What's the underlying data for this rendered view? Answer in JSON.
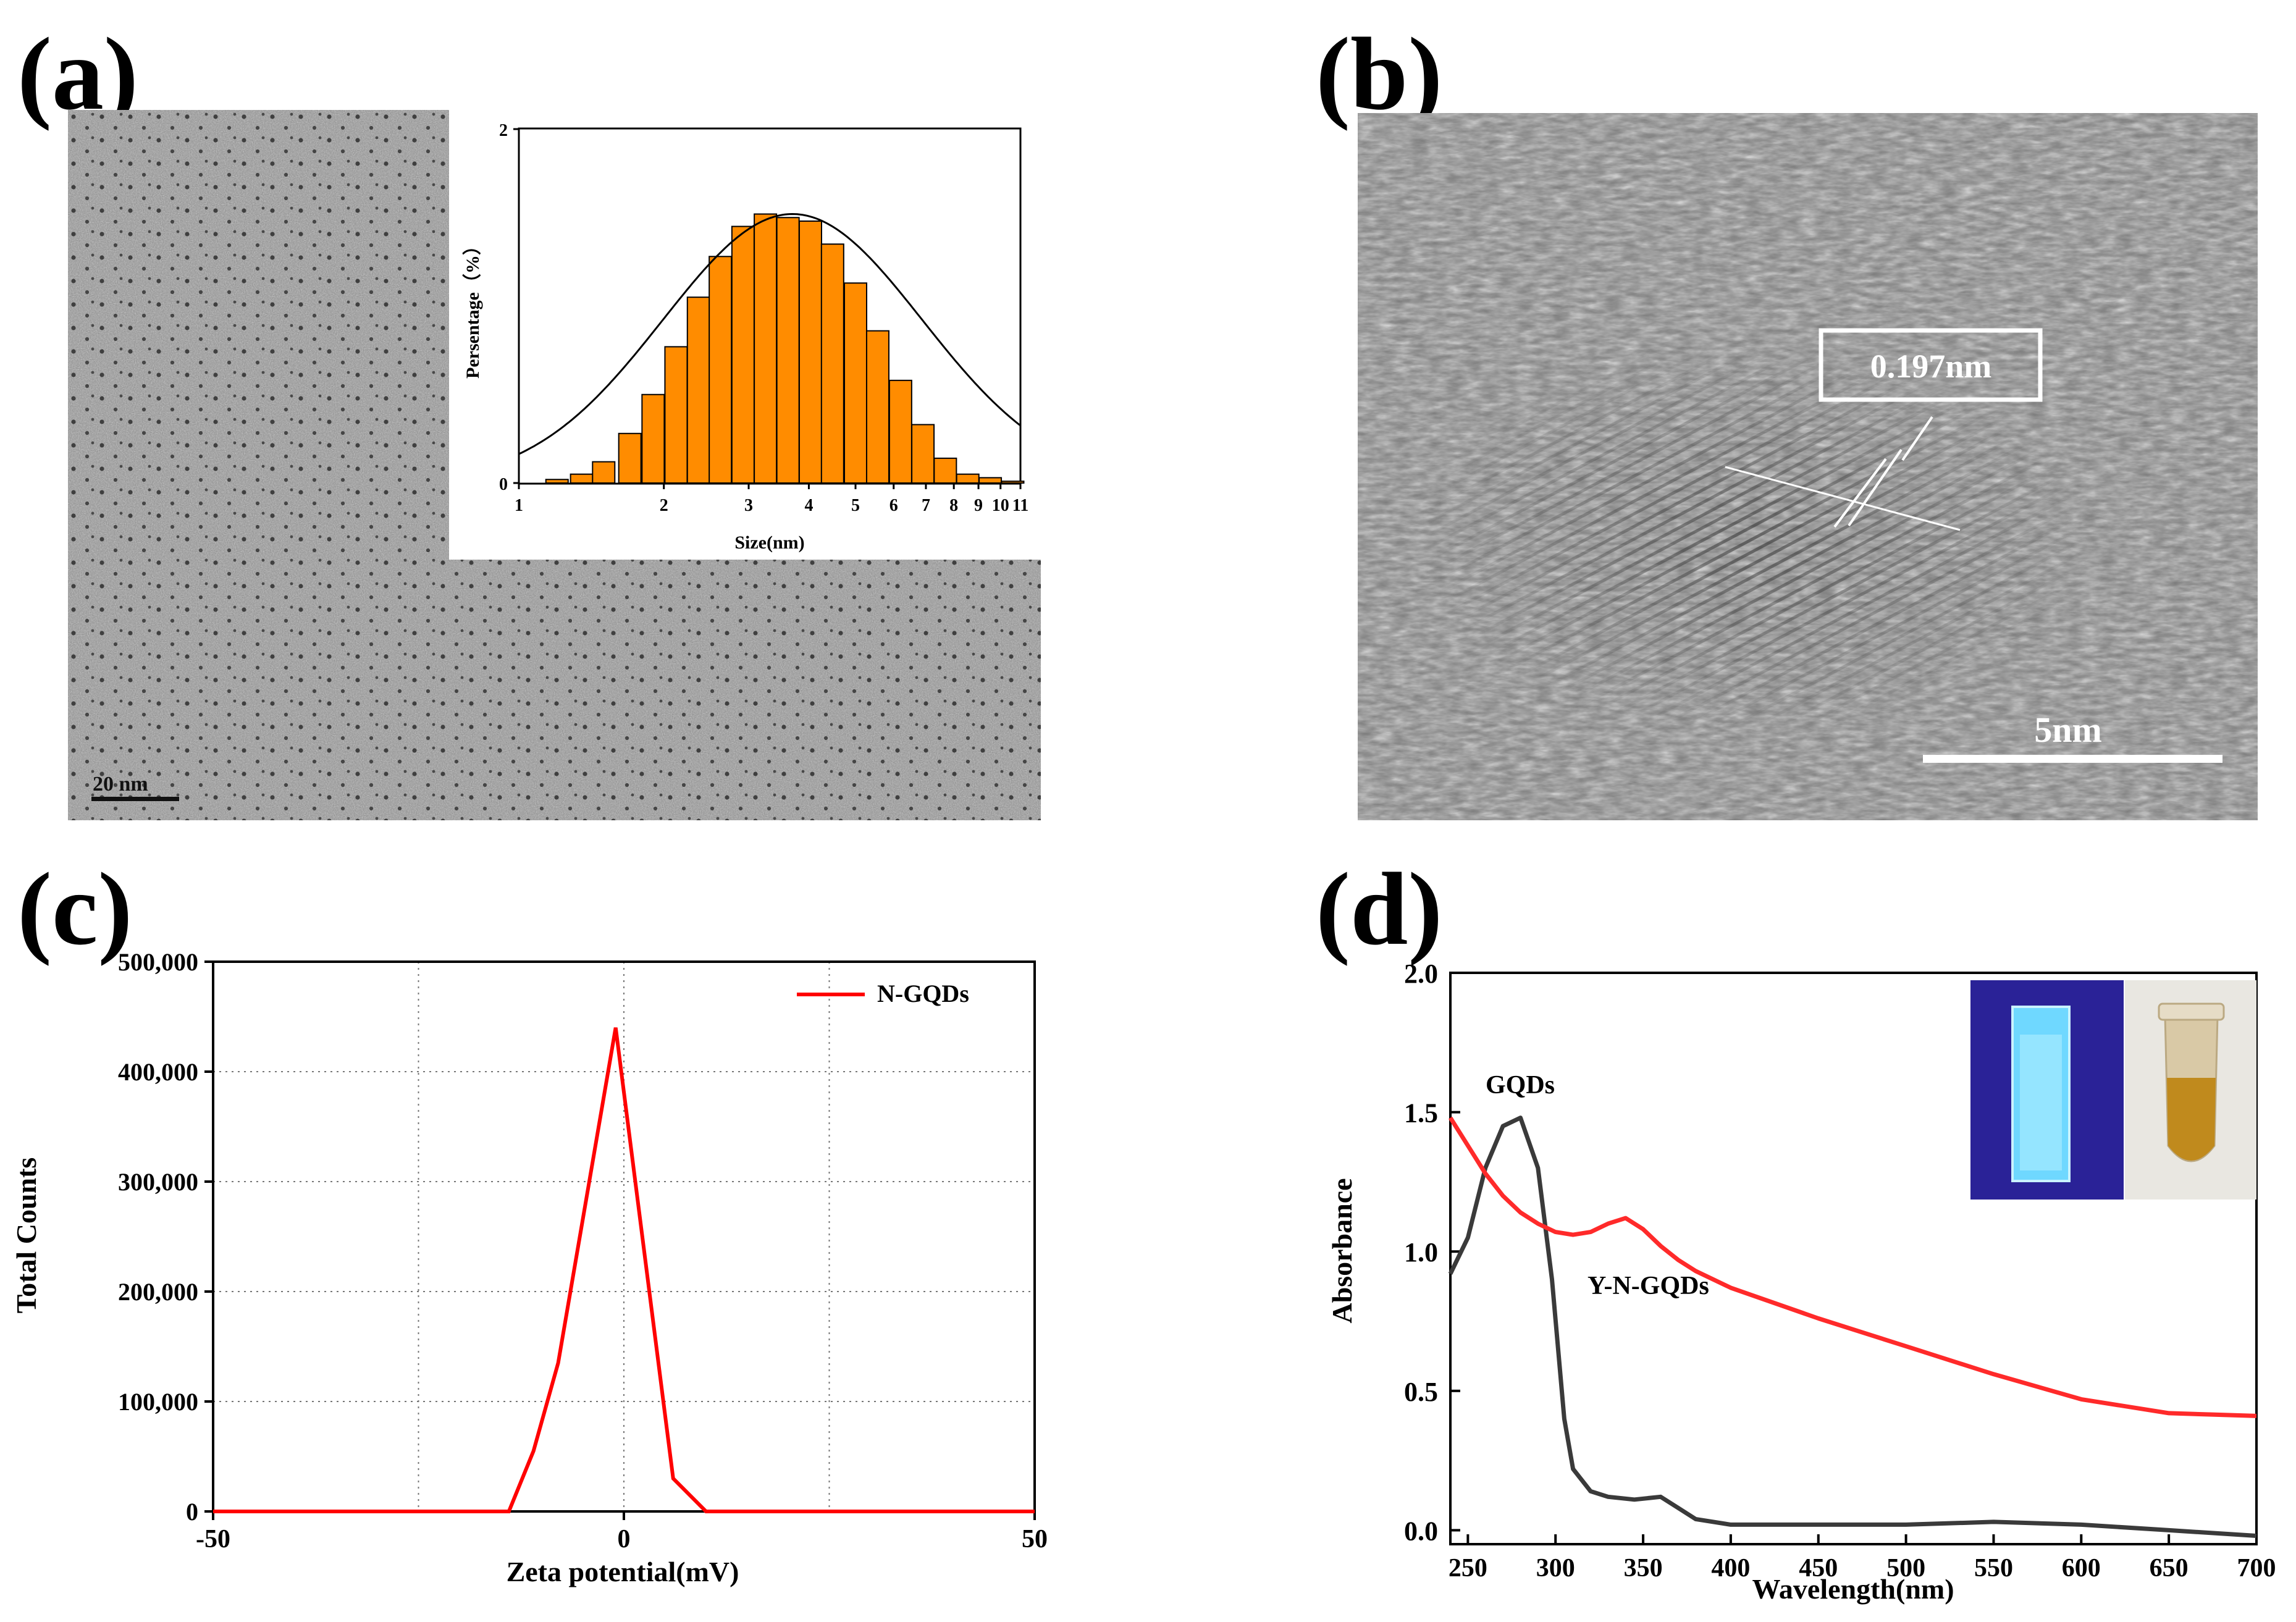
{
  "panel_labels": {
    "a": "(a)",
    "b": "(b)",
    "c": "(c)",
    "d": "(d)"
  },
  "panel_a": {
    "scale_bar_label": "20 nm",
    "inset_colors": {
      "bar": "#FF8C00",
      "fit": "#000000"
    }
  },
  "panel_b": {
    "lattice_label": "0.197nm",
    "scale_bar_label": "5nm"
  },
  "chart_data": [
    {
      "id": "size-distribution",
      "type": "bar",
      "xlabel": "Size(nm)",
      "ylabel": "Persentage（%）",
      "ylim": [
        0,
        2
      ],
      "yticks": [
        "0",
        "2"
      ],
      "xticks": [
        "1",
        "2",
        "3",
        "4",
        "5",
        "6",
        "7",
        "8",
        "9",
        "10",
        "11"
      ],
      "bar_centers_log": [
        1.2,
        1.35,
        1.5,
        1.7,
        1.9,
        2.12,
        2.36,
        2.62,
        2.92,
        3.25,
        3.62,
        4.03,
        4.48,
        5.0,
        5.56,
        6.2,
        6.9,
        7.68,
        8.55,
        9.52,
        10.6
      ],
      "values": [
        0.02,
        0.05,
        0.12,
        0.28,
        0.5,
        0.77,
        1.05,
        1.28,
        1.45,
        1.52,
        1.5,
        1.48,
        1.35,
        1.13,
        0.86,
        0.58,
        0.33,
        0.14,
        0.05,
        0.03,
        0.01
      ],
      "fit_curve": "gaussian",
      "bar_color": "#FF8C00"
    },
    {
      "id": "zeta-potential",
      "type": "line",
      "xlabel": "Zeta potential(mV)",
      "ylabel": "Total Counts",
      "xlim": [
        -50,
        50
      ],
      "ylim": [
        0,
        500000
      ],
      "xticks": [
        "-50",
        "0",
        "50"
      ],
      "yticks": [
        "0",
        "100,000",
        "200,000",
        "300,000",
        "400,000",
        "500,000"
      ],
      "grid": true,
      "legend_position": "top-right",
      "series": [
        {
          "name": "N-GQDs",
          "color": "#FF0000",
          "x": [
            -50,
            -14,
            -11,
            -8,
            -1,
            6,
            10,
            50
          ],
          "y": [
            0,
            0,
            55000,
            135000,
            440000,
            30000,
            0,
            0
          ]
        }
      ]
    },
    {
      "id": "absorbance",
      "type": "line",
      "xlabel": "Wavelength(nm)",
      "ylabel": "Absorbance",
      "xlim": [
        240,
        700
      ],
      "ylim": [
        -0.05,
        2.0
      ],
      "xticks": [
        "250",
        "300",
        "350",
        "400",
        "450",
        "500",
        "550",
        "600",
        "650",
        "700"
      ],
      "yticks": [
        "0.0",
        "0.5",
        "1.0",
        "1.5",
        "2.0"
      ],
      "annotations": [
        "GQDs",
        "Y-N-GQDs"
      ],
      "series": [
        {
          "name": "GQDs",
          "color": "#3a3a3a",
          "x": [
            240,
            250,
            260,
            270,
            280,
            290,
            298,
            305,
            310,
            320,
            330,
            345,
            360,
            370,
            380,
            400,
            450,
            500,
            550,
            600,
            650,
            700
          ],
          "y": [
            0.92,
            1.05,
            1.3,
            1.45,
            1.48,
            1.3,
            0.9,
            0.4,
            0.22,
            0.14,
            0.12,
            0.11,
            0.12,
            0.08,
            0.04,
            0.02,
            0.02,
            0.02,
            0.03,
            0.02,
            0.0,
            -0.02
          ]
        },
        {
          "name": "Y-N-GQDs",
          "color": "#FF2A2A",
          "x": [
            240,
            250,
            260,
            270,
            280,
            290,
            300,
            310,
            320,
            330,
            340,
            350,
            360,
            370,
            380,
            400,
            450,
            500,
            550,
            600,
            650,
            700
          ],
          "y": [
            1.48,
            1.38,
            1.28,
            1.2,
            1.14,
            1.1,
            1.07,
            1.06,
            1.07,
            1.1,
            1.12,
            1.08,
            1.02,
            0.97,
            0.93,
            0.87,
            0.76,
            0.66,
            0.56,
            0.47,
            0.42,
            0.41
          ]
        }
      ]
    }
  ]
}
